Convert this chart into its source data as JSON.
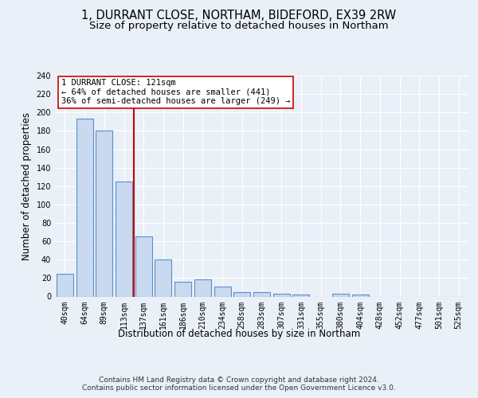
{
  "title": "1, DURRANT CLOSE, NORTHAM, BIDEFORD, EX39 2RW",
  "subtitle": "Size of property relative to detached houses in Northam",
  "xlabel": "Distribution of detached houses by size in Northam",
  "ylabel": "Number of detached properties",
  "bin_labels": [
    "40sqm",
    "64sqm",
    "89sqm",
    "113sqm",
    "137sqm",
    "161sqm",
    "186sqm",
    "210sqm",
    "234sqm",
    "258sqm",
    "283sqm",
    "307sqm",
    "331sqm",
    "355sqm",
    "380sqm",
    "404sqm",
    "428sqm",
    "452sqm",
    "477sqm",
    "501sqm",
    "525sqm"
  ],
  "bar_values": [
    25,
    193,
    180,
    125,
    65,
    40,
    16,
    19,
    11,
    5,
    5,
    3,
    2,
    0,
    3,
    2,
    0,
    0,
    0,
    0,
    0
  ],
  "bar_color": "#c9d9ef",
  "bar_edge_color": "#5b8fc9",
  "bar_edge_width": 0.8,
  "vline_x": 3.5,
  "vline_color": "#cc0000",
  "annotation_text": "1 DURRANT CLOSE: 121sqm\n← 64% of detached houses are smaller (441)\n36% of semi-detached houses are larger (249) →",
  "annotation_box_color": "#ffffff",
  "annotation_box_edge_color": "#cc0000",
  "ylim": [
    0,
    240
  ],
  "yticks": [
    0,
    20,
    40,
    60,
    80,
    100,
    120,
    140,
    160,
    180,
    200,
    220,
    240
  ],
  "footer_text": "Contains HM Land Registry data © Crown copyright and database right 2024.\nContains public sector information licensed under the Open Government Licence v3.0.",
  "bg_color": "#eaf0f8",
  "plot_bg_color": "#eaf0f8",
  "title_fontsize": 10.5,
  "subtitle_fontsize": 9.5,
  "ylabel_fontsize": 8.5,
  "xlabel_fontsize": 8.5,
  "tick_fontsize": 7,
  "annotation_fontsize": 7.5,
  "footer_fontsize": 6.5
}
